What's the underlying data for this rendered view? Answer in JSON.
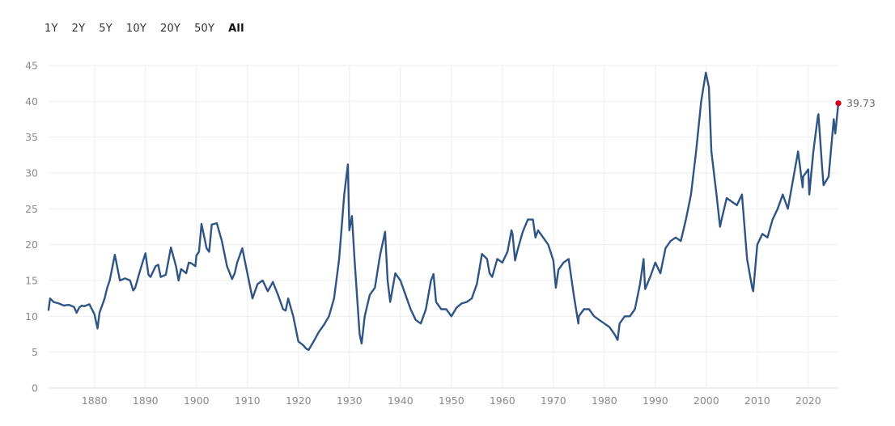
{
  "range_selector": {
    "options": [
      "1Y",
      "2Y",
      "5Y",
      "10Y",
      "20Y",
      "50Y",
      "All"
    ],
    "selected": "All"
  },
  "colors": {
    "line": "#2f5586",
    "last_point": "#d0021b",
    "grid": "#eeeeee"
  },
  "chart_data": {
    "type": "line",
    "title": "",
    "xlabel": "",
    "ylabel": "",
    "xlim": [
      1871,
      2025.9
    ],
    "ylim": [
      0,
      45
    ],
    "x_ticks": [
      1880,
      1890,
      1900,
      1910,
      1920,
      1930,
      1940,
      1950,
      1960,
      1970,
      1980,
      1990,
      2000,
      2010,
      2020
    ],
    "y_ticks": [
      0,
      5,
      10,
      15,
      20,
      25,
      30,
      35,
      40,
      45
    ],
    "grid": true,
    "legend": "none",
    "last_value_label": "39.73",
    "series": [
      {
        "x": [
          1871.0,
          1871.3,
          1872.0,
          1873.0,
          1874.0,
          1875.0,
          1876.0,
          1876.5,
          1877.0,
          1877.5,
          1878.0,
          1879.0,
          1880.0,
          1880.6,
          1881.0,
          1882.0,
          1882.5,
          1883.0,
          1884.0,
          1885.0,
          1886.0,
          1887.0,
          1887.6,
          1888.0,
          1889.0,
          1890.0,
          1890.6,
          1891.0,
          1892.0,
          1892.5,
          1893.0,
          1894.0,
          1895.0,
          1896.0,
          1896.5,
          1897.0,
          1898.0,
          1898.5,
          1899.0,
          1899.8,
          1900.0,
          1900.5,
          1901.0,
          1902.0,
          1902.5,
          1903.0,
          1904.0,
          1905.0,
          1906.0,
          1907.0,
          1907.5,
          1908.0,
          1909.0,
          1910.0,
          1911.0,
          1912.0,
          1913.0,
          1914.0,
          1915.0,
          1916.0,
          1917.0,
          1917.5,
          1918.0,
          1919.0,
          1920.0,
          1920.9,
          1921.5,
          1922.0,
          1923.0,
          1924.0,
          1925.0,
          1926.0,
          1927.0,
          1928.0,
          1929.0,
          1929.7,
          1930.0,
          1930.5,
          1931.0,
          1932.0,
          1932.4,
          1933.0,
          1933.5,
          1934.0,
          1935.0,
          1936.0,
          1937.0,
          1937.5,
          1938.0,
          1939.0,
          1940.0,
          1941.0,
          1942.0,
          1943.0,
          1944.0,
          1945.0,
          1946.0,
          1946.5,
          1947.0,
          1948.0,
          1949.0,
          1950.0,
          1951.0,
          1952.0,
          1953.0,
          1954.0,
          1955.0,
          1956.0,
          1957.0,
          1957.5,
          1958.0,
          1959.0,
          1960.0,
          1961.0,
          1961.8,
          1962.0,
          1962.5,
          1963.0,
          1964.0,
          1965.0,
          1966.0,
          1966.5,
          1967.0,
          1968.0,
          1969.0,
          1970.0,
          1970.5,
          1971.0,
          1972.0,
          1973.0,
          1974.0,
          1974.9,
          1975.0,
          1976.0,
          1977.0,
          1978.0,
          1979.0,
          1980.0,
          1981.0,
          1982.0,
          1982.6,
          1983.0,
          1984.0,
          1985.0,
          1986.0,
          1987.0,
          1987.7,
          1988.0,
          1989.0,
          1990.0,
          1991.0,
          1992.0,
          1993.0,
          1994.0,
          1995.0,
          1996.0,
          1997.0,
          1998.0,
          1999.0,
          1999.9,
          2000.5,
          2001.0,
          2002.0,
          2002.7,
          2003.0,
          2004.0,
          2005.0,
          2006.0,
          2007.0,
          2008.0,
          2009.0,
          2009.2,
          2010.0,
          2011.0,
          2012.0,
          2013.0,
          2014.0,
          2015.0,
          2016.0,
          2017.0,
          2018.0,
          2018.9,
          2019.0,
          2020.0,
          2020.2,
          2021.0,
          2021.9,
          2022.0,
          2022.7,
          2023.0,
          2024.0,
          2025.0,
          2025.3,
          2025.9
        ],
        "y": [
          10.9,
          12.5,
          12.0,
          11.8,
          11.5,
          11.6,
          11.3,
          10.5,
          11.2,
          11.5,
          11.4,
          11.7,
          10.3,
          8.3,
          10.5,
          12.5,
          14.0,
          15.0,
          18.6,
          15.0,
          15.3,
          15.0,
          13.6,
          14.0,
          16.5,
          18.8,
          15.8,
          15.5,
          17.0,
          17.2,
          15.5,
          15.8,
          19.6,
          17.0,
          15.0,
          16.6,
          16.0,
          17.5,
          17.4,
          17.0,
          18.5,
          19.0,
          22.9,
          19.5,
          19.0,
          22.8,
          23.0,
          20.5,
          17.0,
          15.2,
          16.0,
          17.5,
          19.5,
          16.0,
          12.5,
          14.5,
          15.0,
          13.5,
          14.8,
          13.0,
          11.0,
          10.8,
          12.5,
          10.0,
          6.5,
          6.0,
          5.5,
          5.3,
          6.5,
          7.8,
          8.8,
          10.0,
          12.5,
          18.0,
          27.0,
          31.2,
          22.0,
          24.0,
          18.0,
          7.5,
          6.2,
          10.0,
          11.5,
          13.0,
          14.0,
          18.5,
          21.8,
          15.0,
          12.0,
          16.0,
          15.0,
          13.0,
          11.0,
          9.5,
          9.0,
          11.0,
          15.0,
          15.9,
          12.0,
          11.0,
          11.0,
          10.0,
          11.2,
          11.8,
          12.0,
          12.5,
          14.5,
          18.7,
          18.0,
          16.0,
          15.5,
          18.0,
          17.5,
          19.0,
          22.0,
          21.5,
          17.8,
          19.3,
          21.8,
          23.5,
          23.5,
          21.0,
          22.0,
          21.0,
          20.0,
          17.8,
          14.0,
          16.5,
          17.5,
          18.0,
          13.0,
          9.0,
          10.0,
          11.0,
          11.0,
          10.0,
          9.5,
          9.0,
          8.5,
          7.5,
          6.7,
          9.0,
          10.0,
          10.0,
          11.0,
          14.5,
          18.0,
          13.8,
          15.5,
          17.5,
          16.0,
          19.5,
          20.5,
          21.0,
          20.5,
          23.5,
          27.0,
          33.0,
          40.0,
          44.0,
          42.0,
          33.0,
          27.0,
          22.5,
          23.5,
          26.5,
          26.0,
          25.5,
          27.0,
          18.0,
          14.0,
          13.5,
          20.0,
          21.5,
          21.0,
          23.5,
          25.0,
          27.0,
          25.0,
          29.0,
          33.0,
          28.0,
          29.5,
          30.5,
          27.0,
          33.0,
          38.0,
          38.2,
          31.0,
          28.3,
          29.5,
          37.5,
          35.5,
          39.73
        ]
      }
    ]
  }
}
